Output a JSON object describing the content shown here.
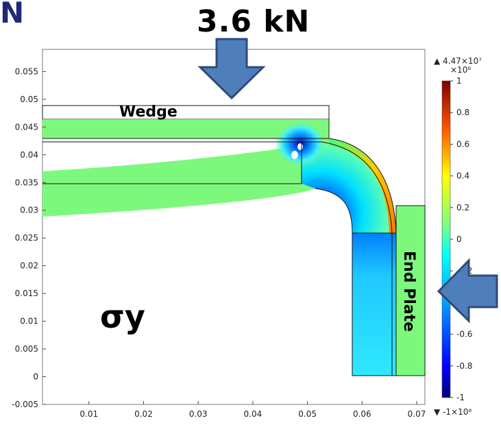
{
  "corner_text": "N",
  "force_label_top": "3.6 kN",
  "stress_label": "σy",
  "part_labels": {
    "wedge": "Wedge",
    "end_plate": "End Plate"
  },
  "x_axis": {
    "ticks": [
      "0.01",
      "0.02",
      "0.03",
      "0.04",
      "0.05",
      "0.06",
      "0.07"
    ],
    "range": [
      0.0015,
      0.0715
    ]
  },
  "y_axis": {
    "ticks": [
      "0.055",
      "0.05",
      "0.045",
      "0.04",
      "0.035",
      "0.03",
      "0.025",
      "0.02",
      "0.015",
      "0.01",
      "0.005",
      "0",
      "-0.005"
    ],
    "range": [
      -0.005,
      0.059
    ]
  },
  "colorbar": {
    "max_marker": "▲ 4.47×10⁷",
    "multiplier": "×10⁸",
    "min_marker": "▼ -1×10⁸",
    "labels": [
      "1",
      "0.8",
      "0.6",
      "0.4",
      "0.2",
      "0",
      "-0.2",
      "-0.4",
      "-0.6",
      "-0.8",
      "-1"
    ],
    "range": [
      -1,
      1
    ]
  },
  "colors": {
    "field": "#7cf97c",
    "arrow_fill": "#4f7fba",
    "arrow_stroke": "#2d4a7a",
    "mesh_line": "#111111"
  },
  "arrows": {
    "top": "down-arrow",
    "right": "left-arrow"
  }
}
